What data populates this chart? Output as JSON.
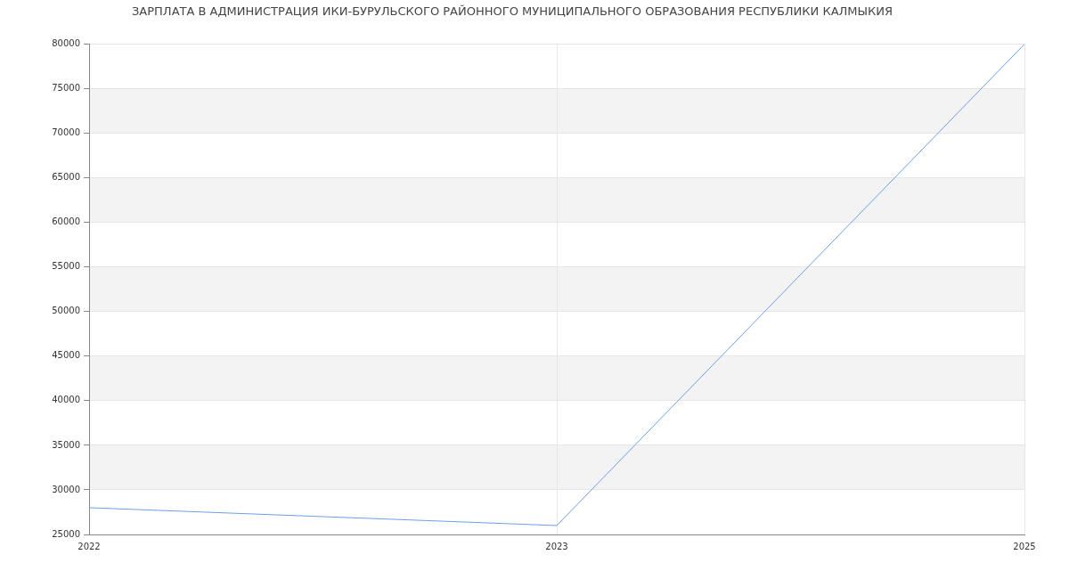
{
  "chart_data": {
    "type": "line",
    "title": "ЗАРПЛАТА В АДМИНИСТРАЦИЯ ИКИ-БУРУЛЬСКОГО РАЙОННОГО МУНИЦИПАЛЬНОГО ОБРАЗОВАНИЯ РЕСПУБЛИКИ КАЛМЫКИЯ",
    "categories": [
      "2022",
      "2023",
      "2025"
    ],
    "series": [
      {
        "color": "#6d9eeb",
        "values": [
          28000,
          26000,
          80000
        ]
      }
    ],
    "ylim": [
      25000,
      80000
    ],
    "yticks": [
      25000,
      30000,
      35000,
      40000,
      45000,
      50000,
      55000,
      60000,
      65000,
      70000,
      75000,
      80000
    ],
    "grid": true,
    "bands": [
      {
        "axis": "y",
        "from": 30000,
        "to": 35000,
        "color": "#f3f3f3"
      },
      {
        "axis": "y",
        "from": 40000,
        "to": 45000,
        "color": "#f3f3f3"
      },
      {
        "axis": "y",
        "from": 50000,
        "to": 55000,
        "color": "#f3f3f3"
      },
      {
        "axis": "y",
        "from": 60000,
        "to": 65000,
        "color": "#f3f3f3"
      },
      {
        "axis": "y",
        "from": 70000,
        "to": 75000,
        "color": "#f3f3f3"
      }
    ]
  }
}
